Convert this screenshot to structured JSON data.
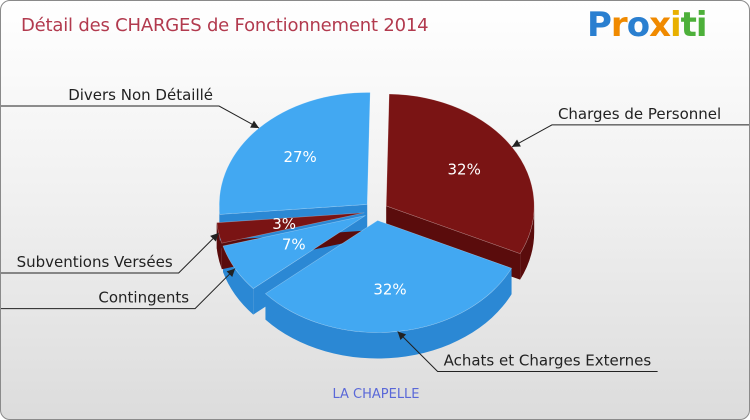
{
  "header": {
    "title": "Détail des CHARGES de Fonctionnement 2014",
    "logo_text": "Proxiti",
    "logo_colors": [
      "#2a7fd0",
      "#f08a00",
      "#e8b000",
      "#4db03a"
    ]
  },
  "footer": {
    "location": "LA CHAPELLE"
  },
  "chart_data": {
    "type": "pie",
    "title": "Détail des CHARGES de Fonctionnement 2014",
    "subtitle": "LA CHAPELLE",
    "style": "3d-exploded",
    "slices": [
      {
        "name": "Charges de Personnel",
        "value": 32,
        "label": "32%",
        "color": "#7a1414",
        "side": "#5a0c0c",
        "text_color": "#ffffff"
      },
      {
        "name": "Achats et Charges Externes",
        "value": 32,
        "label": "32%",
        "color": "#42a8f2",
        "side": "#2b88d4",
        "text_color": "#ffffff"
      },
      {
        "name": "Contingents",
        "value": 7,
        "label": "7%",
        "color": "#42a8f2",
        "side": "#2b88d4",
        "text_color": "#ffffff"
      },
      {
        "name": "Subventions Versées",
        "value": 3,
        "label": "3%",
        "color": "#7a1414",
        "side": "#5a0c0c",
        "text_color": "#ffffff"
      },
      {
        "name": "Divers Non Détaillé",
        "value": 27,
        "label": "27%",
        "color": "#42a8f2",
        "side": "#2b88d4",
        "text_color": "#ffffff"
      }
    ]
  }
}
